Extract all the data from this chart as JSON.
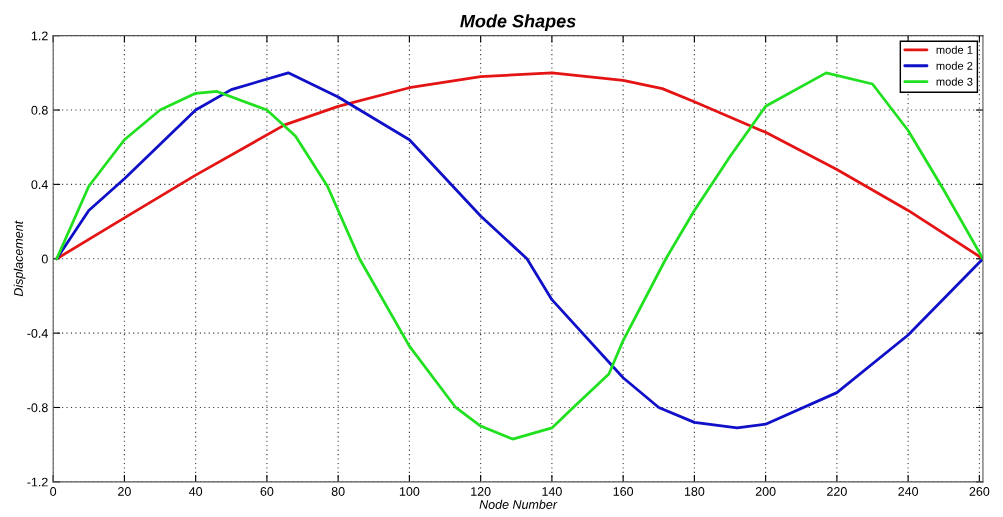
{
  "chart_data": {
    "type": "line",
    "title": "Mode Shapes",
    "xlabel": "Node Number",
    "ylabel": "Displacement",
    "xlim": [
      0,
      261
    ],
    "xticks": [
      0,
      20,
      40,
      60,
      80,
      100,
      120,
      140,
      160,
      180,
      200,
      220,
      240,
      260
    ],
    "ylim": [
      -1.2,
      1.2
    ],
    "yticks": [
      -1.2,
      -0.8,
      -0.4,
      0,
      0.4,
      0.8,
      1.2
    ],
    "grid": true,
    "legend": "top right",
    "line_style": "solid",
    "series": [
      {
        "name": "mode 1",
        "color": "#e41414",
        "x": [
          1,
          20,
          40,
          65,
          80,
          100,
          120,
          140,
          160,
          171,
          180,
          200,
          220,
          240,
          261
        ],
        "values": [
          0,
          0.22,
          0.45,
          0.72,
          0.82,
          0.92,
          0.98,
          1.0,
          0.96,
          0.915,
          0.845,
          0.68,
          0.48,
          0.26,
          0
        ]
      },
      {
        "name": "mode 2",
        "color": "#1010c8",
        "x": [
          1,
          10,
          20,
          40,
          50,
          66,
          80,
          100,
          120,
          133,
          140,
          160,
          170,
          180,
          192,
          200,
          220,
          240,
          261
        ],
        "values": [
          0,
          0.26,
          0.43,
          0.8,
          0.91,
          1.0,
          0.87,
          0.64,
          0.23,
          0,
          -0.22,
          -0.64,
          -0.8,
          -0.88,
          -0.91,
          -0.89,
          -0.72,
          -0.41,
          0
        ]
      },
      {
        "name": "mode 3",
        "color": "#20e020",
        "x": [
          1,
          10,
          20,
          30,
          40,
          46,
          60,
          68,
          77,
          86,
          100,
          113,
          120,
          129,
          140,
          146,
          156,
          160,
          172,
          180,
          190,
          200,
          217,
          230,
          240,
          250,
          261
        ],
        "values": [
          0,
          0.39,
          0.64,
          0.8,
          0.89,
          0.9,
          0.8,
          0.66,
          0.39,
          0,
          -0.47,
          -0.8,
          -0.9,
          -0.97,
          -0.91,
          -0.8,
          -0.62,
          -0.44,
          0,
          0.26,
          0.55,
          0.82,
          1.0,
          0.94,
          0.69,
          0.37,
          0
        ]
      }
    ]
  }
}
